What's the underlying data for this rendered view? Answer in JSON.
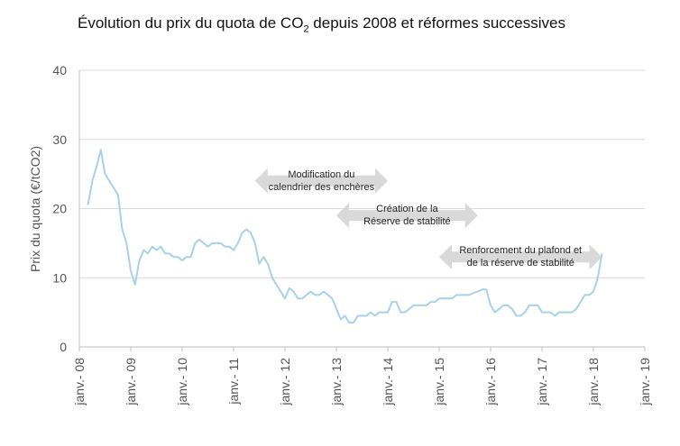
{
  "chart_data": {
    "type": "line",
    "title_main": "Évolution du prix du quota de CO",
    "title_sub": "2",
    "title_rest": " depuis 2008 et réformes successives",
    "ylabel": "Prix du quota (€/tCO2)",
    "xlabel": "",
    "ylim": [
      0,
      40
    ],
    "yticks": [
      "0",
      "10",
      "20",
      "30",
      "40"
    ],
    "xlim": [
      "2008-01",
      "2019-01"
    ],
    "xticks": [
      "janv.- 08",
      "janv.- 09",
      "janv.- 10",
      "janv.- 11",
      "janv.- 12",
      "janv.- 13",
      "janv.- 14",
      "janv.- 15",
      "janv.- 16",
      "janv.- 17",
      "janv.- 18",
      "janv.- 19"
    ],
    "grid": true,
    "line_color": "#a9d0ec",
    "series": [
      {
        "x": [
          "2008-03",
          "2008-04",
          "2008-05",
          "2008-06",
          "2008-07",
          "2008-08",
          "2008-09",
          "2008-10",
          "2008-11",
          "2008-12",
          "2009-01",
          "2009-02",
          "2009-03",
          "2009-04",
          "2009-05",
          "2009-06",
          "2009-07",
          "2009-08",
          "2009-09",
          "2009-10",
          "2009-11",
          "2009-12",
          "2010-01",
          "2010-02",
          "2010-03",
          "2010-04",
          "2010-05",
          "2010-06",
          "2010-07",
          "2010-08",
          "2010-09",
          "2010-10",
          "2010-11",
          "2010-12",
          "2011-01",
          "2011-02",
          "2011-03",
          "2011-04",
          "2011-05",
          "2011-06",
          "2011-07",
          "2011-08",
          "2011-09",
          "2011-10",
          "2011-11",
          "2011-12",
          "2012-01",
          "2012-02",
          "2012-03",
          "2012-04",
          "2012-05",
          "2012-06",
          "2012-07",
          "2012-08",
          "2012-09",
          "2012-10",
          "2012-11",
          "2012-12",
          "2013-01",
          "2013-02",
          "2013-03",
          "2013-04",
          "2013-05",
          "2013-06",
          "2013-07",
          "2013-08",
          "2013-09",
          "2013-10",
          "2013-11",
          "2013-12",
          "2014-01",
          "2014-02",
          "2014-03",
          "2014-04",
          "2014-05",
          "2014-06",
          "2014-07",
          "2014-08",
          "2014-09",
          "2014-10",
          "2014-11",
          "2014-12",
          "2015-01",
          "2015-02",
          "2015-03",
          "2015-04",
          "2015-05",
          "2015-06",
          "2015-07",
          "2015-08",
          "2015-09",
          "2015-10",
          "2015-11",
          "2015-12",
          "2016-01",
          "2016-02",
          "2016-03",
          "2016-04",
          "2016-05",
          "2016-06",
          "2016-07",
          "2016-08",
          "2016-09",
          "2016-10",
          "2016-11",
          "2016-12",
          "2017-01",
          "2017-02",
          "2017-03",
          "2017-04",
          "2017-05",
          "2017-06",
          "2017-07",
          "2017-08",
          "2017-09",
          "2017-10",
          "2017-11",
          "2017-12",
          "2018-01",
          "2018-02",
          "2018-03"
        ],
        "y": [
          20.5,
          24,
          26,
          28.5,
          25,
          24,
          23,
          22,
          17,
          15,
          11,
          9,
          12.5,
          14,
          13.5,
          14.5,
          14,
          14.5,
          13.5,
          13.5,
          13,
          13,
          12.5,
          13,
          13,
          15,
          15.5,
          15,
          14.5,
          15,
          15,
          15,
          14.5,
          14.5,
          14,
          15,
          16.5,
          17,
          16.5,
          15,
          12,
          13,
          12,
          10,
          9,
          8,
          7,
          8.5,
          8,
          7,
          7,
          7.5,
          8,
          7.5,
          7.5,
          8,
          7.5,
          7,
          5.5,
          4,
          4.5,
          3.5,
          3.5,
          4.5,
          4.5,
          4.5,
          5,
          4.5,
          5,
          5,
          5,
          6.5,
          6.5,
          5,
          5,
          5.5,
          6,
          6,
          6,
          6,
          6.5,
          6.5,
          7,
          7,
          7,
          7,
          7.5,
          7.5,
          7.5,
          7.5,
          7.8,
          8,
          8.3,
          8.3,
          6,
          5,
          5.5,
          6,
          6,
          5.5,
          4.5,
          4.5,
          5,
          6,
          6,
          6,
          5,
          5,
          5,
          4.5,
          5,
          5,
          5,
          5,
          5.5,
          6.5,
          7.5,
          7.5,
          8,
          10,
          13.5
        ]
      }
    ],
    "annotations": [
      {
        "lines": [
          "Modification du",
          "calendrier des enchères"
        ],
        "x_start": "2011-06",
        "x_end": "2014-01",
        "y": 24,
        "arrow_color": "#d9d9d9"
      },
      {
        "lines": [
          "Création de la",
          "Réserve de stabilité"
        ],
        "x_start": "2013-01",
        "x_end": "2015-10",
        "y": 19,
        "arrow_color": "#d9d9d9"
      },
      {
        "lines": [
          "Renforcement du plafond et",
          "de la réserve de stabilité"
        ],
        "x_start": "2015-01",
        "x_end": "2018-03",
        "y": 13,
        "arrow_color": "#d9d9d9"
      }
    ]
  }
}
